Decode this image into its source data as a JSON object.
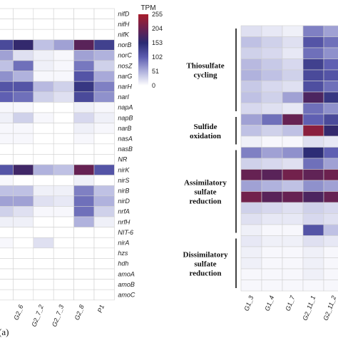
{
  "chart_data": [
    {
      "type": "heatmap",
      "panel_label": "(a)",
      "columns": [
        "",
        "G2_6",
        "G2_7_2",
        "G2_7_3",
        "G2_8",
        "P1"
      ],
      "rows": [
        "nifD",
        "nifH",
        "nifK",
        "norB",
        "norC",
        "nosZ",
        "narG",
        "narH",
        "narI",
        "napA",
        "napB",
        "narB",
        "nasA",
        "nasB",
        "NR",
        "nirK",
        "nirS",
        "nirB",
        "nirD",
        "nrfA",
        "nrfH",
        "NIT-6",
        "nirA",
        "hzs",
        "hdh",
        "amoA",
        "amoB",
        "amoC"
      ],
      "values": [
        [
          0,
          0,
          0,
          0,
          0,
          0
        ],
        [
          0,
          0,
          0,
          0,
          0,
          0
        ],
        [
          0,
          0,
          0,
          0,
          0,
          0
        ],
        [
          120,
          160,
          40,
          60,
          190,
          130
        ],
        [
          60,
          20,
          10,
          5,
          60,
          50
        ],
        [
          40,
          90,
          10,
          5,
          85,
          30
        ],
        [
          70,
          50,
          5,
          5,
          110,
          55
        ],
        [
          110,
          110,
          45,
          30,
          140,
          80
        ],
        [
          100,
          90,
          30,
          20,
          120,
          70
        ],
        [
          5,
          5,
          0,
          0,
          10,
          5
        ],
        [
          10,
          30,
          5,
          0,
          25,
          10
        ],
        [
          5,
          5,
          0,
          0,
          10,
          5
        ],
        [
          5,
          5,
          0,
          0,
          5,
          0
        ],
        [
          0,
          0,
          0,
          0,
          0,
          0
        ],
        [
          0,
          0,
          0,
          0,
          0,
          0
        ],
        [
          110,
          170,
          50,
          40,
          200,
          110
        ],
        [
          5,
          0,
          0,
          0,
          10,
          0
        ],
        [
          40,
          40,
          10,
          10,
          80,
          40
        ],
        [
          60,
          60,
          20,
          15,
          90,
          50
        ],
        [
          30,
          20,
          5,
          5,
          90,
          30
        ],
        [
          10,
          10,
          0,
          0,
          50,
          10
        ],
        [
          0,
          0,
          0,
          0,
          0,
          0
        ],
        [
          5,
          0,
          20,
          0,
          0,
          0
        ],
        [
          0,
          0,
          0,
          0,
          0,
          0
        ],
        [
          0,
          0,
          0,
          0,
          0,
          0
        ],
        [
          0,
          0,
          0,
          0,
          0,
          0
        ],
        [
          0,
          0,
          0,
          0,
          0,
          0
        ],
        [
          0,
          0,
          0,
          0,
          0,
          0
        ]
      ]
    },
    {
      "type": "heatmap",
      "columns": [
        "G1_3",
        "G1_4",
        "G1_7",
        "G2_11_1",
        "G2_11_2"
      ],
      "groups": [
        {
          "label": "Thiosulfate cycling",
          "rows": 8
        },
        {
          "label": "Sulfide oxidation",
          "rows": 3
        },
        {
          "label": "Assimilatory sulfate reduction",
          "rows": 8
        },
        {
          "label": "Dissimilatory sulfate reduction",
          "rows": 5
        }
      ],
      "values": [
        [
          20,
          15,
          10,
          80,
          60
        ],
        [
          40,
          30,
          20,
          110,
          90
        ],
        [
          30,
          25,
          15,
          90,
          70
        ],
        [
          45,
          35,
          25,
          130,
          100
        ],
        [
          50,
          40,
          30,
          120,
          110
        ],
        [
          35,
          25,
          20,
          115,
          90
        ],
        [
          40,
          30,
          60,
          180,
          140
        ],
        [
          25,
          20,
          15,
          90,
          70
        ],
        [
          60,
          90,
          200,
          100,
          120
        ],
        [
          40,
          30,
          40,
          230,
          160
        ],
        [
          10,
          5,
          5,
          20,
          15
        ],
        [
          80,
          60,
          70,
          150,
          100
        ],
        [
          30,
          25,
          20,
          90,
          60
        ],
        [
          200,
          190,
          210,
          195,
          205
        ],
        [
          60,
          50,
          40,
          70,
          60
        ],
        [
          210,
          190,
          200,
          180,
          200
        ],
        [
          30,
          25,
          20,
          30,
          25
        ],
        [
          20,
          15,
          15,
          25,
          20
        ],
        [
          10,
          5,
          5,
          110,
          40
        ],
        [
          15,
          10,
          10,
          20,
          15
        ],
        [
          10,
          5,
          5,
          10,
          5
        ],
        [
          10,
          5,
          5,
          10,
          5
        ],
        [
          5,
          5,
          5,
          10,
          5
        ],
        [
          5,
          5,
          5,
          5,
          5
        ]
      ]
    }
  ],
  "colorbar": {
    "title": "TPM",
    "ticks": [
      "255",
      "204",
      "153",
      "102",
      "51",
      "0"
    ],
    "colors": [
      "#a81e2c",
      "#6b2150",
      "#2a2a72",
      "#5c5cb0",
      "#aeb0dc",
      "#ffffff"
    ]
  }
}
